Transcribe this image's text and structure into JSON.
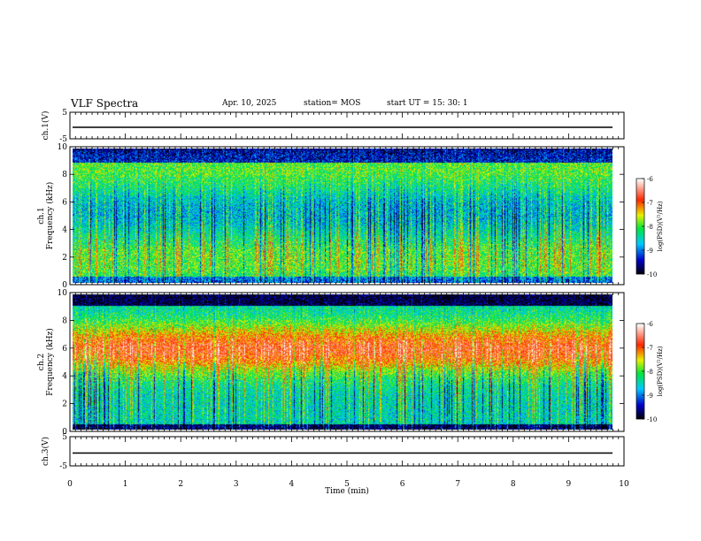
{
  "header": {
    "title": "VLF Spectra",
    "date": "Apr. 10, 2025",
    "station": "station= MOS",
    "start": "start  UT  =   15: 30: 1"
  },
  "chart_data": [
    {
      "type": "line",
      "panel": "ch.1 waveform",
      "ylabel": "ch.1(V)",
      "ylim": [
        -5,
        5
      ],
      "yticks": [
        5,
        -5
      ],
      "x": [
        0,
        10
      ],
      "values": [
        0,
        0
      ]
    },
    {
      "type": "heatmap",
      "panel": "ch.1 spectrogram",
      "ylabel": "ch.1\nFrequency (kHz)",
      "ylim": [
        0,
        10
      ],
      "yticks": [
        0,
        2,
        4,
        6,
        8,
        10
      ],
      "xlim": [
        0,
        10
      ],
      "colorbar": {
        "label": "log(PSD)(V²/Hz)",
        "range": [
          -10,
          -6
        ],
        "ticks": [
          "-6",
          "-7",
          "-8",
          "-9",
          "-10"
        ]
      }
    },
    {
      "type": "heatmap",
      "panel": "ch.2 spectrogram",
      "ylabel": "ch.2\nFrequency (kHz)",
      "ylim": [
        0,
        10
      ],
      "yticks": [
        0,
        2,
        4,
        6,
        8,
        10
      ],
      "xlim": [
        0,
        10
      ],
      "colorbar": {
        "label": "log(PSD)(V²/Hz)",
        "range": [
          -10,
          -6
        ],
        "ticks": [
          "-6",
          "-7",
          "-8",
          "-9",
          "-10"
        ]
      }
    },
    {
      "type": "line",
      "panel": "ch.3 waveform",
      "ylabel": "ch.3(V)",
      "ylim": [
        -5,
        5
      ],
      "yticks": [
        5,
        -5
      ],
      "x": [
        0,
        10
      ],
      "values": [
        0,
        0
      ]
    }
  ],
  "xaxis": {
    "label": "Time  (min)",
    "ticks": [
      "0",
      "1",
      "2",
      "3",
      "4",
      "5",
      "6",
      "7",
      "8",
      "9",
      "10"
    ],
    "range": [
      0,
      10
    ]
  },
  "colors": {
    "scale": [
      "#000000",
      "#0000ff",
      "#00ffff",
      "#00ff00",
      "#ffff00",
      "#ff0000",
      "#ffffff"
    ]
  }
}
